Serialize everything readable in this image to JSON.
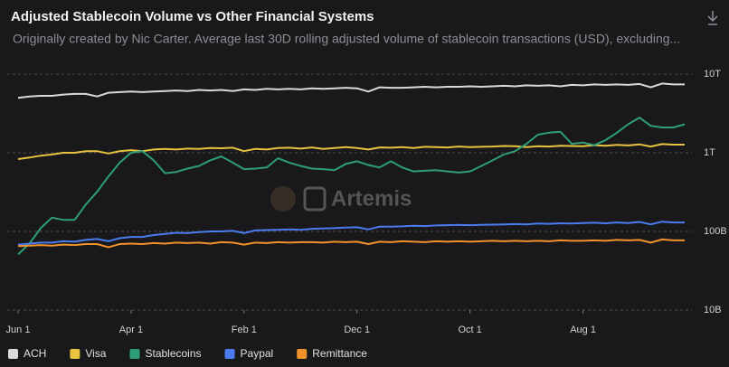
{
  "header": {
    "title": "Adjusted Stablecoin Volume vs Other Financial Systems",
    "subtitle": "Originally created by Nic Carter. Average last 30D rolling adjusted volume of stablecoin transactions (USD), excluding..."
  },
  "chart_data": {
    "type": "line",
    "watermark": "Artemis",
    "log_scale": true,
    "grid": true,
    "legend": "bottom-left",
    "categories": [
      "Jun 1",
      null,
      null,
      null,
      null,
      null,
      null,
      null,
      null,
      null,
      "Apr 1",
      null,
      null,
      null,
      null,
      null,
      null,
      null,
      null,
      null,
      "Feb 1",
      null,
      null,
      null,
      null,
      null,
      null,
      null,
      null,
      null,
      "Dec 1",
      null,
      null,
      null,
      null,
      null,
      null,
      null,
      null,
      null,
      "Oct 1",
      null,
      null,
      null,
      null,
      null,
      null,
      null,
      null,
      null,
      "Aug 1",
      null,
      null,
      null,
      null,
      null,
      null,
      null,
      null,
      null
    ],
    "ylim": [
      10000000000.0,
      10000000000000.0
    ],
    "yticks": [
      {
        "value": 10000000000000.0,
        "label": "10T"
      },
      {
        "value": 1000000000000.0,
        "label": "1T"
      },
      {
        "value": 100000000000.0,
        "label": "100B"
      },
      {
        "value": 10000000000.0,
        "label": "10B"
      }
    ],
    "series": [
      {
        "name": "ACH",
        "color": "#d9d9d9",
        "values": [
          5000000000000.0,
          5200000000000.0,
          5300000000000.0,
          5300000000000.0,
          5500000000000.0,
          5600000000000.0,
          5600000000000.0,
          5200000000000.0,
          5800000000000.0,
          5900000000000.0,
          6000000000000.0,
          5900000000000.0,
          6000000000000.0,
          6100000000000.0,
          6200000000000.0,
          6100000000000.0,
          6300000000000.0,
          6200000000000.0,
          6300000000000.0,
          6100000000000.0,
          6400000000000.0,
          6300000000000.0,
          6500000000000.0,
          6400000000000.0,
          6500000000000.0,
          6400000000000.0,
          6600000000000.0,
          6500000000000.0,
          6600000000000.0,
          6700000000000.0,
          6600000000000.0,
          6000000000000.0,
          6800000000000.0,
          6700000000000.0,
          6700000000000.0,
          6800000000000.0,
          6900000000000.0,
          6800000000000.0,
          6900000000000.0,
          6900000000000.0,
          7000000000000.0,
          6900000000000.0,
          7000000000000.0,
          7100000000000.0,
          7000000000000.0,
          7200000000000.0,
          7100000000000.0,
          7200000000000.0,
          7000000000000.0,
          7300000000000.0,
          7200000000000.0,
          7400000000000.0,
          7300000000000.0,
          7400000000000.0,
          7300000000000.0,
          7500000000000.0,
          6800000000000.0,
          7600000000000.0,
          7400000000000.0,
          7400000000000.0
        ]
      },
      {
        "name": "Visa",
        "color": "#e8c33f",
        "values": [
          830000000000.0,
          870000000000.0,
          920000000000.0,
          950000000000.0,
          1000000000000.0,
          1000000000000.0,
          1050000000000.0,
          1050000000000.0,
          980000000000.0,
          1050000000000.0,
          1080000000000.0,
          1050000000000.0,
          1100000000000.0,
          1120000000000.0,
          1100000000000.0,
          1130000000000.0,
          1120000000000.0,
          1150000000000.0,
          1140000000000.0,
          1160000000000.0,
          1050000000000.0,
          1120000000000.0,
          1100000000000.0,
          1150000000000.0,
          1160000000000.0,
          1130000000000.0,
          1170000000000.0,
          1120000000000.0,
          1150000000000.0,
          1180000000000.0,
          1150000000000.0,
          1100000000000.0,
          1170000000000.0,
          1160000000000.0,
          1180000000000.0,
          1150000000000.0,
          1190000000000.0,
          1180000000000.0,
          1170000000000.0,
          1200000000000.0,
          1180000000000.0,
          1190000000000.0,
          1200000000000.0,
          1220000000000.0,
          1210000000000.0,
          1180000000000.0,
          1210000000000.0,
          1200000000000.0,
          1230000000000.0,
          1220000000000.0,
          1210000000000.0,
          1250000000000.0,
          1230000000000.0,
          1260000000000.0,
          1240000000000.0,
          1280000000000.0,
          1200000000000.0,
          1290000000000.0,
          1270000000000.0,
          1270000000000.0
        ]
      },
      {
        "name": "Stablecoins",
        "color": "#2e9e74",
        "values": [
          51000000000.0,
          70000000000.0,
          110000000000.0,
          150000000000.0,
          140000000000.0,
          140000000000.0,
          220000000000.0,
          320000000000.0,
          500000000000.0,
          750000000000.0,
          1000000000000.0,
          1050000000000.0,
          800000000000.0,
          550000000000.0,
          570000000000.0,
          630000000000.0,
          680000000000.0,
          800000000000.0,
          900000000000.0,
          750000000000.0,
          620000000000.0,
          630000000000.0,
          650000000000.0,
          850000000000.0,
          750000000000.0,
          680000000000.0,
          630000000000.0,
          620000000000.0,
          600000000000.0,
          720000000000.0,
          780000000000.0,
          700000000000.0,
          650000000000.0,
          780000000000.0,
          650000000000.0,
          580000000000.0,
          590000000000.0,
          600000000000.0,
          580000000000.0,
          560000000000.0,
          580000000000.0,
          680000000000.0,
          800000000000.0,
          950000000000.0,
          1050000000000.0,
          1300000000000.0,
          1700000000000.0,
          1800000000000.0,
          1850000000000.0,
          1300000000000.0,
          1350000000000.0,
          1250000000000.0,
          1450000000000.0,
          1800000000000.0,
          2300000000000.0,
          2800000000000.0,
          2200000000000.0,
          2100000000000.0,
          2100000000000.0,
          2300000000000.0
        ]
      },
      {
        "name": "Paypal",
        "color": "#4a7cf0",
        "values": [
          68000000000.0,
          70000000000.0,
          72000000000.0,
          72000000000.0,
          75000000000.0,
          74000000000.0,
          78000000000.0,
          80000000000.0,
          75000000000.0,
          82000000000.0,
          85000000000.0,
          85000000000.0,
          90000000000.0,
          93000000000.0,
          96000000000.0,
          95000000000.0,
          98000000000.0,
          100000000000.0,
          100000000000.0,
          102000000000.0,
          95000000000.0,
          103000000000.0,
          104000000000.0,
          105000000000.0,
          106000000000.0,
          105000000000.0,
          108000000000.0,
          109000000000.0,
          110000000000.0,
          112000000000.0,
          113000000000.0,
          106000000000.0,
          115000000000.0,
          115000000000.0,
          116000000000.0,
          118000000000.0,
          117000000000.0,
          119000000000.0,
          120000000000.0,
          121000000000.0,
          120000000000.0,
          121000000000.0,
          122000000000.0,
          123000000000.0,
          124000000000.0,
          123000000000.0,
          126000000000.0,
          125000000000.0,
          127000000000.0,
          126000000000.0,
          128000000000.0,
          129000000000.0,
          127000000000.0,
          130000000000.0,
          128000000000.0,
          132000000000.0,
          123000000000.0,
          133000000000.0,
          130000000000.0,
          130000000000.0
        ]
      },
      {
        "name": "Remittance",
        "color": "#f0922b",
        "values": [
          65000000000.0,
          66000000000.0,
          67000000000.0,
          66000000000.0,
          68000000000.0,
          67000000000.0,
          69000000000.0,
          69000000000.0,
          63000000000.0,
          69000000000.0,
          70000000000.0,
          69000000000.0,
          71000000000.0,
          70000000000.0,
          72000000000.0,
          71000000000.0,
          72000000000.0,
          70000000000.0,
          73000000000.0,
          72000000000.0,
          68000000000.0,
          72000000000.0,
          71000000000.0,
          73000000000.0,
          72000000000.0,
          73000000000.0,
          73000000000.0,
          72000000000.0,
          74000000000.0,
          73000000000.0,
          74000000000.0,
          69000000000.0,
          74000000000.0,
          73000000000.0,
          75000000000.0,
          74000000000.0,
          73000000000.0,
          75000000000.0,
          74000000000.0,
          75000000000.0,
          74000000000.0,
          75000000000.0,
          76000000000.0,
          75000000000.0,
          76000000000.0,
          75000000000.0,
          76000000000.0,
          75000000000.0,
          77000000000.0,
          76000000000.0,
          76000000000.0,
          77000000000.0,
          76000000000.0,
          78000000000.0,
          77000000000.0,
          78000000000.0,
          72000000000.0,
          79000000000.0,
          77000000000.0,
          77000000000.0
        ]
      }
    ]
  }
}
